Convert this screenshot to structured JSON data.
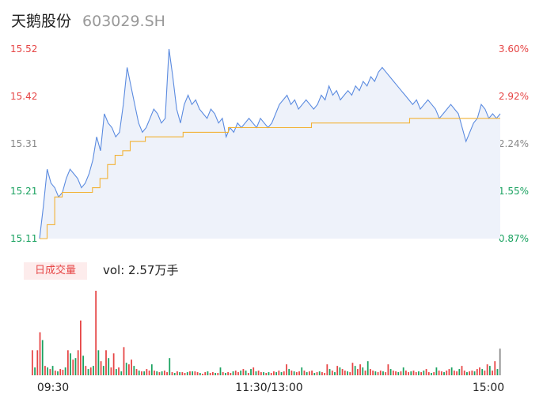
{
  "header": {
    "name": "天鹅股份",
    "code": "603029.SH"
  },
  "colors": {
    "price": "#5b8be0",
    "avg": "#f2b236",
    "up": "#e64545",
    "down": "#1aa260",
    "neutral": "#888888",
    "fill": "#eef2fa"
  },
  "volume_panel": {
    "badge": "日成交量",
    "vol_label": "vol: 2.57万手"
  },
  "chart_data": [
    {
      "type": "line",
      "title": "",
      "y_left_ticks": [
        "15.52",
        "15.42",
        "15.31",
        "15.21",
        "15.11"
      ],
      "y_right_ticks": [
        "3.60%",
        "2.92%",
        "2.24%",
        "1.55%",
        "0.87%"
      ],
      "ylim": [
        15.11,
        15.52
      ],
      "x_ticks": [
        "09:30",
        "11:30/13:00",
        "15:00"
      ],
      "series": [
        {
          "values": [
            15.11,
            15.18,
            15.26,
            15.23,
            15.22,
            15.2,
            15.21,
            15.24,
            15.26,
            15.25,
            15.24,
            15.22,
            15.23,
            15.25,
            15.28,
            15.33,
            15.3,
            15.38,
            15.36,
            15.35,
            15.33,
            15.34,
            15.4,
            15.48,
            15.44,
            15.4,
            15.36,
            15.34,
            15.35,
            15.37,
            15.39,
            15.38,
            15.36,
            15.37,
            15.52,
            15.46,
            15.39,
            15.36,
            15.4,
            15.42,
            15.4,
            15.41,
            15.39,
            15.38,
            15.37,
            15.39,
            15.38,
            15.36,
            15.37,
            15.33,
            15.35,
            15.34,
            15.36,
            15.35,
            15.36,
            15.37,
            15.36,
            15.35,
            15.37,
            15.36,
            15.35,
            15.36,
            15.38,
            15.4,
            15.41,
            15.42,
            15.4,
            15.41,
            15.39,
            15.4,
            15.41,
            15.4,
            15.39,
            15.4,
            15.42,
            15.41,
            15.44,
            15.42,
            15.43,
            15.41,
            15.42,
            15.43,
            15.42,
            15.44,
            15.43,
            15.45,
            15.44,
            15.46,
            15.45,
            15.47,
            15.48,
            15.47,
            15.46,
            15.45,
            15.44,
            15.43,
            15.42,
            15.41,
            15.4,
            15.41,
            15.39,
            15.4,
            15.41,
            15.4,
            15.39,
            15.37,
            15.38,
            15.39,
            15.4,
            15.39,
            15.38,
            15.35,
            15.32,
            15.34,
            15.36,
            15.37,
            15.4,
            15.39,
            15.37,
            15.38,
            15.37,
            15.38
          ],
          "x_ratio_note": ""
        },
        {
          "values": [
            15.11,
            15.14,
            15.2,
            15.21,
            15.21,
            15.21,
            15.21,
            15.22,
            15.24,
            15.27,
            15.29,
            15.3,
            15.32,
            15.32,
            15.33,
            15.33,
            15.33,
            15.33,
            15.33,
            15.34,
            15.34,
            15.34,
            15.34,
            15.34,
            15.34,
            15.35,
            15.35,
            15.35,
            15.35,
            15.35,
            15.35,
            15.35,
            15.35,
            15.35,
            15.35,
            15.35,
            15.36,
            15.36,
            15.36,
            15.36,
            15.36,
            15.36,
            15.36,
            15.36,
            15.36,
            15.36,
            15.36,
            15.36,
            15.36,
            15.37,
            15.37,
            15.37,
            15.37,
            15.37,
            15.37,
            15.37,
            15.37,
            15.37,
            15.37,
            15.37,
            15.37,
            15.37
          ]
        }
      ]
    },
    {
      "type": "bar",
      "title": "",
      "values": [
        {
          "v": 32,
          "c": "up"
        },
        {
          "v": 10,
          "c": "down"
        },
        {
          "v": 32,
          "c": "up"
        },
        {
          "v": 55,
          "c": "up"
        },
        {
          "v": 45,
          "c": "down"
        },
        {
          "v": 12,
          "c": "up"
        },
        {
          "v": 10,
          "c": "down"
        },
        {
          "v": 8,
          "c": "up"
        },
        {
          "v": 12,
          "c": "down"
        },
        {
          "v": 6,
          "c": "up"
        },
        {
          "v": 5,
          "c": "down"
        },
        {
          "v": 8,
          "c": "up"
        },
        {
          "v": 7,
          "c": "up"
        },
        {
          "v": 10,
          "c": "down"
        },
        {
          "v": 32,
          "c": "up"
        },
        {
          "v": 28,
          "c": "down"
        },
        {
          "v": 20,
          "c": "up"
        },
        {
          "v": 22,
          "c": "down"
        },
        {
          "v": 32,
          "c": "up"
        },
        {
          "v": 70,
          "c": "up"
        },
        {
          "v": 25,
          "c": "down"
        },
        {
          "v": 12,
          "c": "up"
        },
        {
          "v": 8,
          "c": "down"
        },
        {
          "v": 10,
          "c": "up"
        },
        {
          "v": 12,
          "c": "down"
        },
        {
          "v": 108,
          "c": "up"
        },
        {
          "v": 32,
          "c": "down"
        },
        {
          "v": 18,
          "c": "up"
        },
        {
          "v": 12,
          "c": "down"
        },
        {
          "v": 32,
          "c": "up"
        },
        {
          "v": 22,
          "c": "down"
        },
        {
          "v": 10,
          "c": "up"
        },
        {
          "v": 28,
          "c": "up"
        },
        {
          "v": 8,
          "c": "down"
        },
        {
          "v": 10,
          "c": "up"
        },
        {
          "v": 5,
          "c": "down"
        },
        {
          "v": 36,
          "c": "up"
        },
        {
          "v": 16,
          "c": "down"
        },
        {
          "v": 14,
          "c": "up"
        },
        {
          "v": 20,
          "c": "up"
        },
        {
          "v": 12,
          "c": "down"
        },
        {
          "v": 8,
          "c": "up"
        },
        {
          "v": 6,
          "c": "down"
        },
        {
          "v": 5,
          "c": "up"
        },
        {
          "v": 5,
          "c": "down"
        },
        {
          "v": 8,
          "c": "up"
        },
        {
          "v": 6,
          "c": "up"
        },
        {
          "v": 14,
          "c": "down"
        },
        {
          "v": 6,
          "c": "up"
        },
        {
          "v": 5,
          "c": "down"
        },
        {
          "v": 4,
          "c": "up"
        },
        {
          "v": 5,
          "c": "down"
        },
        {
          "v": 6,
          "c": "up"
        },
        {
          "v": 4,
          "c": "up"
        },
        {
          "v": 22,
          "c": "down"
        },
        {
          "v": 4,
          "c": "up"
        },
        {
          "v": 3,
          "c": "down"
        },
        {
          "v": 5,
          "c": "up"
        },
        {
          "v": 4,
          "c": "down"
        },
        {
          "v": 4,
          "c": "up"
        },
        {
          "v": 3,
          "c": "up"
        },
        {
          "v": 4,
          "c": "down"
        },
        {
          "v": 5,
          "c": "up"
        },
        {
          "v": 5,
          "c": "down"
        },
        {
          "v": 5,
          "c": "up"
        },
        {
          "v": 4,
          "c": "up"
        },
        {
          "v": 3,
          "c": "down"
        },
        {
          "v": 2,
          "c": "up"
        },
        {
          "v": 4,
          "c": "up"
        },
        {
          "v": 5,
          "c": "down"
        },
        {
          "v": 3,
          "c": "up"
        },
        {
          "v": 4,
          "c": "up"
        },
        {
          "v": 3,
          "c": "down"
        },
        {
          "v": 3,
          "c": "up"
        },
        {
          "v": 10,
          "c": "down"
        },
        {
          "v": 4,
          "c": "up"
        },
        {
          "v": 3,
          "c": "down"
        },
        {
          "v": 4,
          "c": "up"
        },
        {
          "v": 3,
          "c": "up"
        },
        {
          "v": 5,
          "c": "down"
        },
        {
          "v": 6,
          "c": "up"
        },
        {
          "v": 4,
          "c": "up"
        },
        {
          "v": 6,
          "c": "down"
        },
        {
          "v": 8,
          "c": "up"
        },
        {
          "v": 6,
          "c": "down"
        },
        {
          "v": 3,
          "c": "up"
        },
        {
          "v": 8,
          "c": "down"
        },
        {
          "v": 10,
          "c": "up"
        },
        {
          "v": 5,
          "c": "down"
        },
        {
          "v": 6,
          "c": "up"
        },
        {
          "v": 4,
          "c": "up"
        },
        {
          "v": 4,
          "c": "down"
        },
        {
          "v": 3,
          "c": "up"
        },
        {
          "v": 4,
          "c": "down"
        },
        {
          "v": 3,
          "c": "up"
        },
        {
          "v": 5,
          "c": "up"
        },
        {
          "v": 4,
          "c": "down"
        },
        {
          "v": 6,
          "c": "up"
        },
        {
          "v": 4,
          "c": "down"
        },
        {
          "v": 5,
          "c": "up"
        },
        {
          "v": 14,
          "c": "up"
        },
        {
          "v": 8,
          "c": "down"
        },
        {
          "v": 6,
          "c": "up"
        },
        {
          "v": 5,
          "c": "down"
        },
        {
          "v": 4,
          "c": "up"
        },
        {
          "v": 5,
          "c": "up"
        },
        {
          "v": 10,
          "c": "down"
        },
        {
          "v": 6,
          "c": "up"
        },
        {
          "v": 4,
          "c": "down"
        },
        {
          "v": 5,
          "c": "up"
        },
        {
          "v": 6,
          "c": "up"
        },
        {
          "v": 3,
          "c": "down"
        },
        {
          "v": 4,
          "c": "up"
        },
        {
          "v": 5,
          "c": "down"
        },
        {
          "v": 4,
          "c": "up"
        },
        {
          "v": 3,
          "c": "up"
        },
        {
          "v": 14,
          "c": "up"
        },
        {
          "v": 8,
          "c": "down"
        },
        {
          "v": 6,
          "c": "up"
        },
        {
          "v": 4,
          "c": "down"
        },
        {
          "v": 12,
          "c": "up"
        },
        {
          "v": 10,
          "c": "down"
        },
        {
          "v": 8,
          "c": "up"
        },
        {
          "v": 6,
          "c": "up"
        },
        {
          "v": 5,
          "c": "down"
        },
        {
          "v": 4,
          "c": "up"
        },
        {
          "v": 16,
          "c": "up"
        },
        {
          "v": 12,
          "c": "down"
        },
        {
          "v": 8,
          "c": "up"
        },
        {
          "v": 14,
          "c": "up"
        },
        {
          "v": 10,
          "c": "down"
        },
        {
          "v": 6,
          "c": "up"
        },
        {
          "v": 18,
          "c": "down"
        },
        {
          "v": 8,
          "c": "up"
        },
        {
          "v": 6,
          "c": "up"
        },
        {
          "v": 5,
          "c": "down"
        },
        {
          "v": 4,
          "c": "up"
        },
        {
          "v": 6,
          "c": "up"
        },
        {
          "v": 5,
          "c": "down"
        },
        {
          "v": 4,
          "c": "up"
        },
        {
          "v": 14,
          "c": "up"
        },
        {
          "v": 8,
          "c": "down"
        },
        {
          "v": 6,
          "c": "up"
        },
        {
          "v": 5,
          "c": "up"
        },
        {
          "v": 4,
          "c": "down"
        },
        {
          "v": 5,
          "c": "up"
        },
        {
          "v": 10,
          "c": "down"
        },
        {
          "v": 6,
          "c": "up"
        },
        {
          "v": 4,
          "c": "up"
        },
        {
          "v": 5,
          "c": "down"
        },
        {
          "v": 6,
          "c": "up"
        },
        {
          "v": 4,
          "c": "up"
        },
        {
          "v": 5,
          "c": "down"
        },
        {
          "v": 4,
          "c": "up"
        },
        {
          "v": 6,
          "c": "down"
        },
        {
          "v": 8,
          "c": "up"
        },
        {
          "v": 4,
          "c": "up"
        },
        {
          "v": 3,
          "c": "down"
        },
        {
          "v": 4,
          "c": "up"
        },
        {
          "v": 10,
          "c": "down"
        },
        {
          "v": 6,
          "c": "up"
        },
        {
          "v": 5,
          "c": "up"
        },
        {
          "v": 4,
          "c": "down"
        },
        {
          "v": 6,
          "c": "up"
        },
        {
          "v": 8,
          "c": "up"
        },
        {
          "v": 10,
          "c": "down"
        },
        {
          "v": 6,
          "c": "up"
        },
        {
          "v": 5,
          "c": "up"
        },
        {
          "v": 8,
          "c": "down"
        },
        {
          "v": 12,
          "c": "up"
        },
        {
          "v": 6,
          "c": "up"
        },
        {
          "v": 4,
          "c": "down"
        },
        {
          "v": 5,
          "c": "up"
        },
        {
          "v": 6,
          "c": "up"
        },
        {
          "v": 5,
          "c": "down"
        },
        {
          "v": 8,
          "c": "up"
        },
        {
          "v": 10,
          "c": "up"
        },
        {
          "v": 8,
          "c": "down"
        },
        {
          "v": 6,
          "c": "up"
        },
        {
          "v": 14,
          "c": "up"
        },
        {
          "v": 12,
          "c": "down"
        },
        {
          "v": 6,
          "c": "up"
        },
        {
          "v": 18,
          "c": "up"
        },
        {
          "v": 8,
          "c": "down"
        },
        {
          "v": 34,
          "c": "neutral"
        }
      ]
    }
  ]
}
